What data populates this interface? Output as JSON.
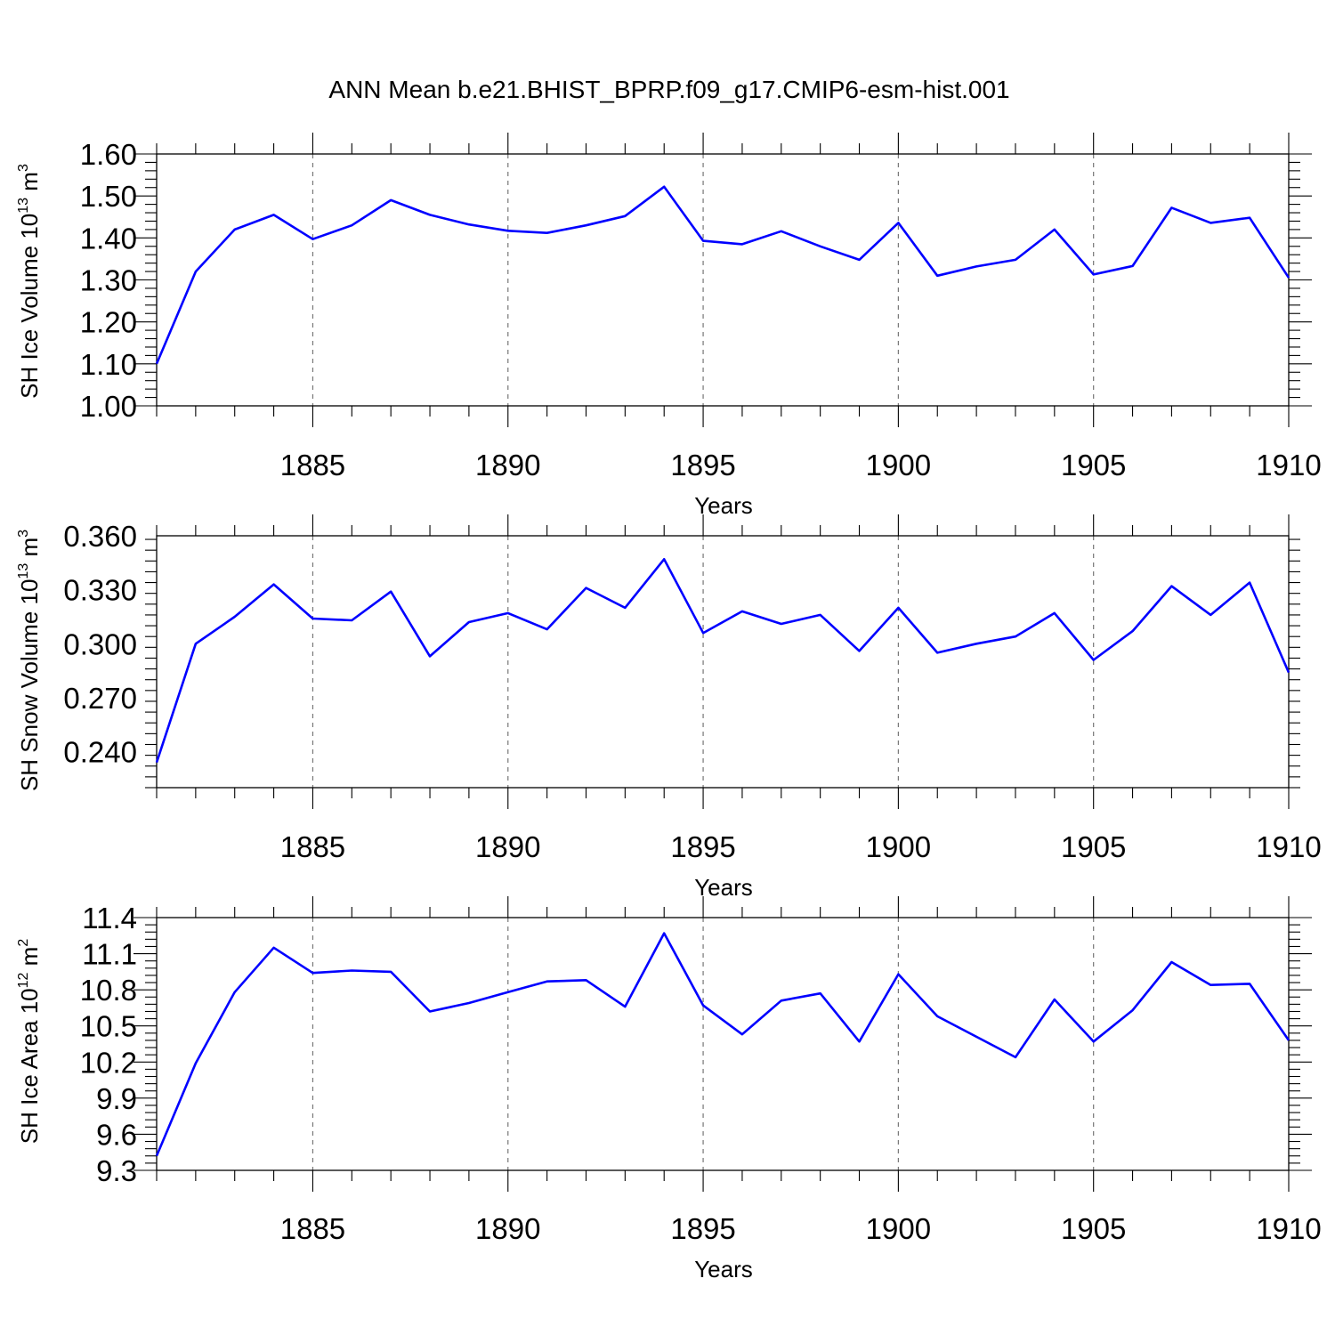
{
  "figure": {
    "title": "ANN Mean b.e21.BHIST_BPRP.f09_g17.CMIP6-esm-hist.001",
    "line_color": "#0000ff"
  },
  "chart_data": [
    {
      "type": "line",
      "title": "",
      "xlabel": "Years",
      "ylabel": "SH Ice Volume 10",
      "ylabel_sup": "13",
      "ylabel_unit": "m",
      "ylabel_unit_sup": "3",
      "xlim": [
        1881,
        1910
      ],
      "ylim": [
        1.0,
        1.6
      ],
      "xticks": [
        1885,
        1890,
        1895,
        1900,
        1905,
        1910
      ],
      "xtick_labels": [
        "1885",
        "1890",
        "1895",
        "1900",
        "1905",
        "1910"
      ],
      "yticks": [
        1.0,
        1.1,
        1.2,
        1.3,
        1.4,
        1.5,
        1.6
      ],
      "ytick_labels": [
        "1.00",
        "1.10",
        "1.20",
        "1.30",
        "1.40",
        "1.50",
        "1.60"
      ],
      "grid": "vertical dashed at major x ticks",
      "series": [
        {
          "color": "#0000ff",
          "x": [
            1881,
            1882,
            1883,
            1884,
            1885,
            1886,
            1887,
            1888,
            1889,
            1890,
            1891,
            1892,
            1893,
            1894,
            1895,
            1896,
            1897,
            1898,
            1899,
            1900,
            1901,
            1902,
            1903,
            1904,
            1905,
            1906,
            1907,
            1908,
            1909,
            1910
          ],
          "y": [
            1.1,
            1.32,
            1.42,
            1.455,
            1.397,
            1.43,
            1.49,
            1.455,
            1.432,
            1.417,
            1.412,
            1.43,
            1.452,
            1.522,
            1.393,
            1.385,
            1.416,
            1.38,
            1.348,
            1.436,
            1.31,
            1.332,
            1.348,
            1.42,
            1.313,
            1.333,
            1.472,
            1.436,
            1.448,
            1.305
          ]
        }
      ]
    },
    {
      "type": "line",
      "title": "",
      "xlabel": "Years",
      "ylabel": "SH Snow Volume 10",
      "ylabel_sup": "13",
      "ylabel_unit": "m",
      "ylabel_unit_sup": "3",
      "xlim": [
        1881,
        1910
      ],
      "ylim": [
        0.22,
        0.36
      ],
      "xticks": [
        1885,
        1890,
        1895,
        1900,
        1905,
        1910
      ],
      "xtick_labels": [
        "1885",
        "1890",
        "1895",
        "1900",
        "1905",
        "1910"
      ],
      "yticks": [
        0.24,
        0.27,
        0.3,
        0.33,
        0.36
      ],
      "ytick_labels": [
        "0.240",
        "0.270",
        "0.300",
        "0.330",
        "0.360"
      ],
      "grid": "vertical dashed at major x ticks",
      "series": [
        {
          "color": "#0000ff",
          "x": [
            1881,
            1882,
            1883,
            1884,
            1885,
            1886,
            1887,
            1888,
            1889,
            1890,
            1891,
            1892,
            1893,
            1894,
            1895,
            1896,
            1897,
            1898,
            1899,
            1900,
            1901,
            1902,
            1903,
            1904,
            1905,
            1906,
            1907,
            1908,
            1909,
            1910
          ],
          "y": [
            0.234,
            0.3,
            0.315,
            0.333,
            0.314,
            0.313,
            0.329,
            0.293,
            0.312,
            0.317,
            0.308,
            0.331,
            0.32,
            0.347,
            0.306,
            0.318,
            0.311,
            0.316,
            0.296,
            0.32,
            0.295,
            0.3,
            0.304,
            0.317,
            0.291,
            0.307,
            0.332,
            0.316,
            0.334,
            0.284
          ]
        }
      ]
    },
    {
      "type": "line",
      "title": "",
      "xlabel": "Years",
      "ylabel": "SH Ice Area 10",
      "ylabel_sup": "12",
      "ylabel_unit": "m",
      "ylabel_unit_sup": "2",
      "xlim": [
        1881,
        1910
      ],
      "ylim": [
        9.3,
        11.4
      ],
      "xticks": [
        1885,
        1890,
        1895,
        1900,
        1905,
        1910
      ],
      "xtick_labels": [
        "1885",
        "1890",
        "1895",
        "1900",
        "1905",
        "1910"
      ],
      "yticks": [
        9.3,
        9.6,
        9.9,
        10.2,
        10.5,
        10.8,
        11.1,
        11.4
      ],
      "ytick_labels": [
        "9.3",
        "9.6",
        "9.9",
        "10.2",
        "10.5",
        "10.8",
        "11.1",
        "11.4"
      ],
      "grid": "vertical dashed at major x ticks",
      "series": [
        {
          "color": "#0000ff",
          "x": [
            1881,
            1882,
            1883,
            1884,
            1885,
            1886,
            1887,
            1888,
            1889,
            1890,
            1891,
            1892,
            1893,
            1894,
            1895,
            1896,
            1897,
            1898,
            1899,
            1900,
            1901,
            1902,
            1903,
            1904,
            1905,
            1906,
            1907,
            1908,
            1909,
            1910
          ],
          "y": [
            9.42,
            10.19,
            10.78,
            11.15,
            10.94,
            10.96,
            10.95,
            10.62,
            10.69,
            10.78,
            10.87,
            10.88,
            10.66,
            11.27,
            10.67,
            10.43,
            10.71,
            10.77,
            10.37,
            10.93,
            10.58,
            10.41,
            10.24,
            10.72,
            10.37,
            10.63,
            11.03,
            10.84,
            10.85,
            10.38
          ]
        }
      ]
    }
  ]
}
